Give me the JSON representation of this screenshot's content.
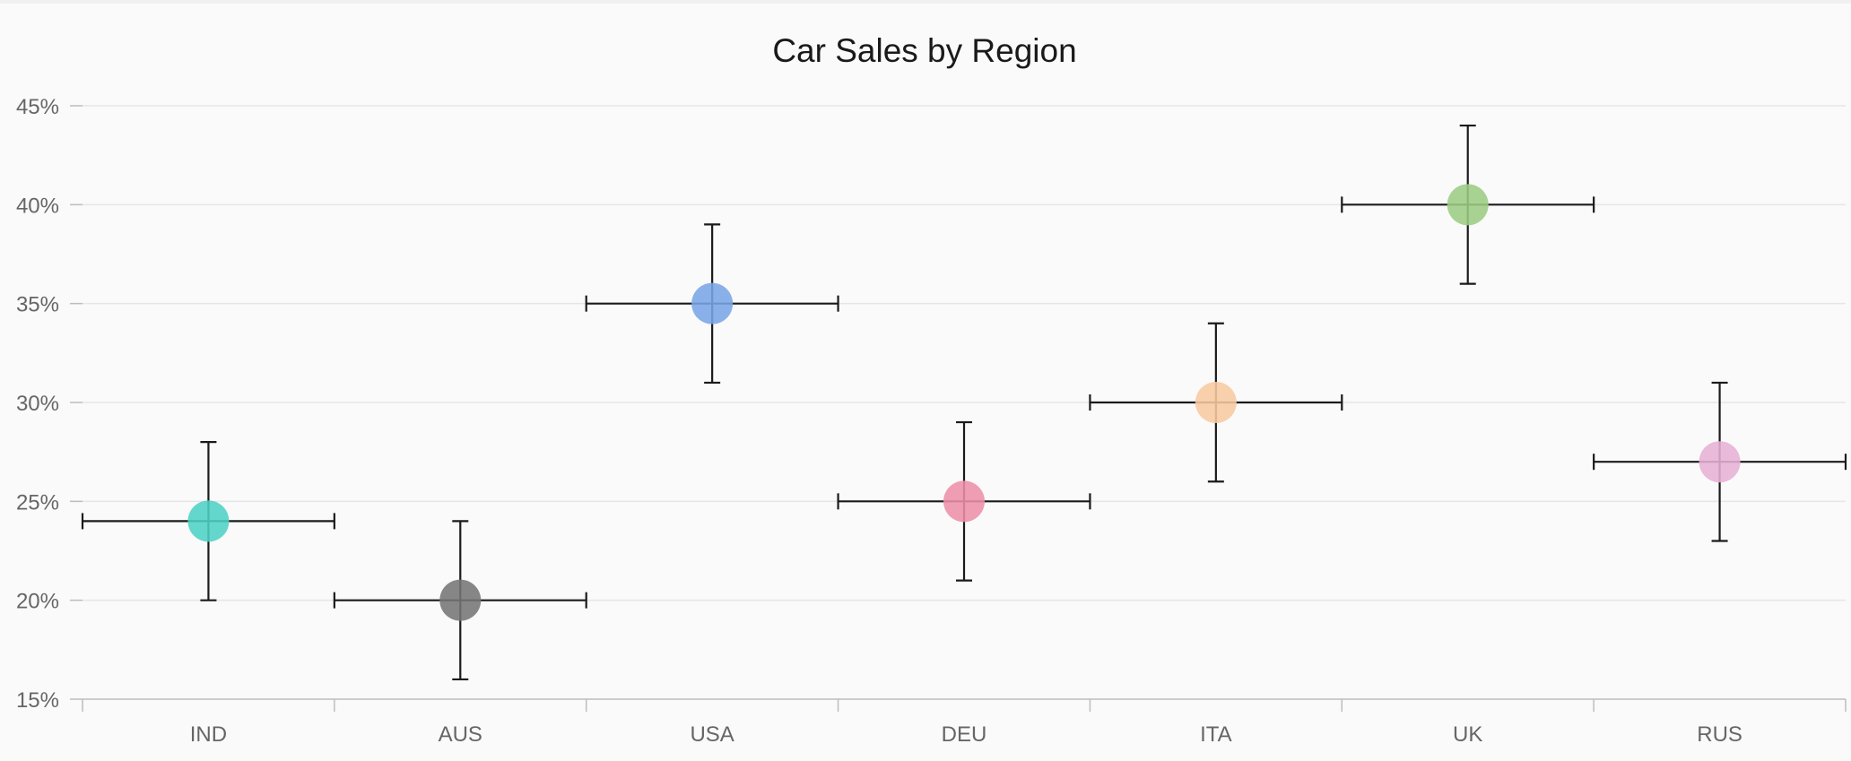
{
  "chart_data": {
    "type": "scatter",
    "title": "Car Sales by Region",
    "xlabel": "",
    "ylabel": "",
    "categories": [
      "IND",
      "AUS",
      "USA",
      "DEU",
      "ITA",
      "UK",
      "RUS"
    ],
    "y_ticks": [
      "15%",
      "20%",
      "25%",
      "30%",
      "35%",
      "40%",
      "45%"
    ],
    "ylim": [
      15,
      45
    ],
    "grid": true,
    "legend": "none",
    "error_bars": {
      "y_error": 4,
      "x_error_categories": 0.5
    },
    "points": [
      {
        "category": "IND",
        "value": 24,
        "color": "#4fd1c5"
      },
      {
        "category": "AUS",
        "value": 20,
        "color": "#757575"
      },
      {
        "category": "USA",
        "value": 35,
        "color": "#7aa5e6"
      },
      {
        "category": "DEU",
        "value": 25,
        "color": "#ec8fa9"
      },
      {
        "category": "ITA",
        "value": 30,
        "color": "#f7c9a0"
      },
      {
        "category": "UK",
        "value": 40,
        "color": "#9ccc82"
      },
      {
        "category": "RUS",
        "value": 27,
        "color": "#e6b0d4"
      }
    ]
  }
}
